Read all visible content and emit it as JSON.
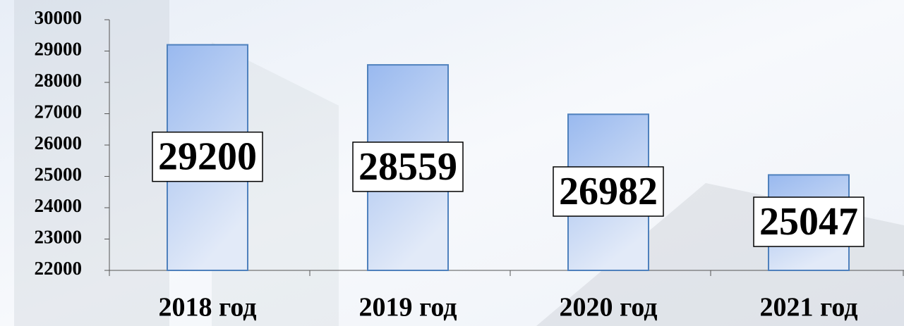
{
  "chart_data": {
    "type": "bar",
    "categories": [
      "2018 год",
      "2019 год",
      "2020 год",
      "2021 год"
    ],
    "values": [
      29200,
      28559,
      26982,
      25047
    ],
    "color": "#99b9ef",
    "ylim": [
      22000,
      30000
    ],
    "yticks": [
      22000,
      23000,
      24000,
      25000,
      26000,
      27000,
      28000,
      29000,
      30000
    ]
  }
}
